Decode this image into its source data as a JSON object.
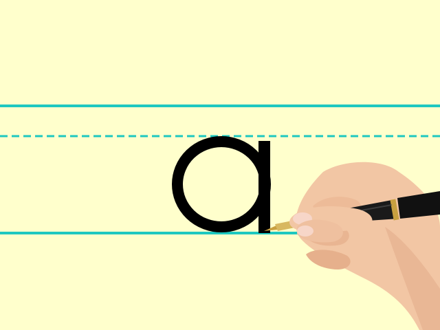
{
  "scene": {
    "letter": "a",
    "colors": {
      "paper": "#ffffcc",
      "guide_line": "#1ec8c0",
      "letter_ink": "#000000",
      "pen_barrel": "#1a1a1a",
      "pen_gold": "#c8a040",
      "skin": "#f2c6a4",
      "skin_shadow": "#d99c7c",
      "nail": "#f7d6c8"
    },
    "guide_lines": {
      "top": "solid",
      "middle": "dashed",
      "baseline": "solid"
    },
    "hand": {
      "holds": "pen",
      "side": "right"
    }
  }
}
